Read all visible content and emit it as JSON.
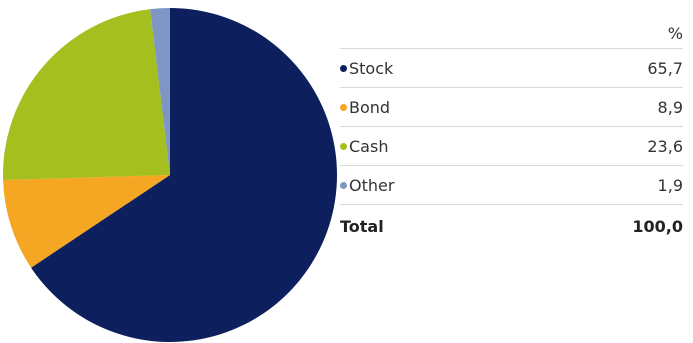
{
  "table": {
    "unit_header": "%",
    "total_label": "Total",
    "total_value": "100,0"
  },
  "chart_data": {
    "type": "pie",
    "title": "",
    "slices": [
      {
        "label": "Stock",
        "value": 65.7,
        "display": "65,7",
        "color": "#0d1f5c"
      },
      {
        "label": "Bond",
        "value": 8.9,
        "display": "8,9",
        "color": "#f5a623"
      },
      {
        "label": "Cash",
        "value": 23.6,
        "display": "23,6",
        "color": "#a5bf1e"
      },
      {
        "label": "Other",
        "value": 1.9,
        "display": "1,9",
        "color": "#7d96c4"
      }
    ],
    "start": "12 o'clock",
    "direction": "clockwise"
  }
}
